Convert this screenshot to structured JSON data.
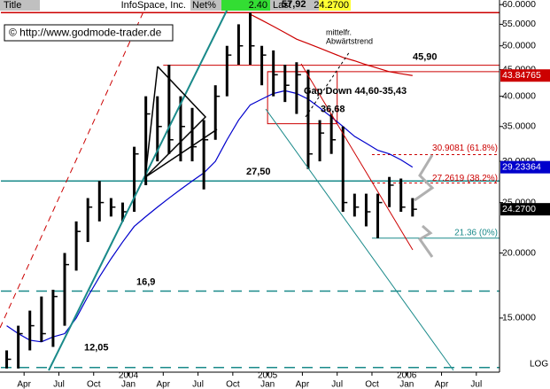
{
  "header": {
    "title": "Title",
    "name": "InfoSpace, Inc.",
    "net_label": "Net%",
    "net": "2.40",
    "last_label": "Last",
    "last": "24.2700"
  },
  "copyright": "© http://www.godmode-trader.de",
  "chart_data": {
    "type": "ohlc",
    "log_scale": true,
    "grid": false,
    "x": [
      "2003-02",
      "2003-03",
      "2003-04",
      "2003-05",
      "2003-06",
      "2003-07",
      "2003-08",
      "2003-09",
      "2003-10",
      "2003-11",
      "2003-12",
      "2004-01",
      "2004-02",
      "2004-03",
      "2004-04",
      "2004-05",
      "2004-06",
      "2004-07",
      "2004-08",
      "2004-09",
      "2004-10",
      "2004-11",
      "2004-12",
      "2005-01",
      "2005-02",
      "2005-03",
      "2005-04",
      "2005-05",
      "2005-06",
      "2005-07",
      "2005-08",
      "2005-09",
      "2005-10",
      "2005-11",
      "2005-12",
      "2006-01"
    ],
    "high": [
      13.0,
      14.5,
      15.5,
      16.5,
      17.0,
      20.0,
      23.0,
      25.5,
      27.5,
      25.5,
      25.0,
      32.0,
      40.0,
      40.0,
      46.0,
      40.0,
      38.0,
      36.0,
      42.0,
      50.0,
      55.0,
      57.92,
      50.0,
      49.0,
      46.0,
      46.5,
      45.0,
      36.0,
      37.0,
      35.0,
      26.0,
      26.0,
      26.0,
      28.0,
      27.8,
      25.5
    ],
    "low": [
      12.0,
      12.0,
      13.0,
      13.5,
      13.2,
      14.5,
      18.5,
      21.0,
      23.0,
      23.5,
      23.0,
      24.0,
      27.0,
      30.0,
      31.0,
      30.0,
      30.0,
      26.5,
      33.0,
      40.0,
      46.0,
      46.0,
      42.0,
      40.0,
      39.0,
      37.0,
      29.0,
      30.0,
      31.0,
      24.0,
      23.5,
      22.5,
      21.36,
      24.5,
      24.0,
      23.5
    ],
    "close": [
      12.5,
      14.0,
      14.5,
      14.0,
      16.5,
      19.0,
      22.0,
      24.5,
      25.0,
      24.5,
      24.0,
      31.0,
      37.0,
      35.0,
      33.0,
      35.0,
      32.0,
      33.0,
      40.0,
      48.0,
      50.0,
      50.0,
      48.0,
      44.0,
      42.0,
      44.0,
      31.0,
      34.0,
      33.0,
      25.0,
      24.5,
      24.0,
      25.0,
      27.0,
      24.5,
      24.27
    ],
    "color": "#000000",
    "moving_averages": [
      {
        "color": "#0000cc",
        "values": [
          14.5,
          14.0,
          13.6,
          13.5,
          13.8,
          14.0,
          15.0,
          16.5,
          18.0,
          19.5,
          21.0,
          22.5,
          23.5,
          24.5,
          25.5,
          26.5,
          27.5,
          28.5,
          30.0,
          33.0,
          36.0,
          38.5,
          39.5,
          40.5,
          41.0,
          40.5,
          39.5,
          38.0,
          36.5,
          35.0,
          33.5,
          32.5,
          31.5,
          31.0,
          30.2,
          29.23364
        ]
      },
      {
        "color": "#cc0000",
        "values": [
          null,
          null,
          null,
          null,
          null,
          null,
          null,
          null,
          null,
          null,
          null,
          null,
          null,
          null,
          null,
          null,
          null,
          null,
          null,
          null,
          null,
          57.5,
          56.0,
          54.5,
          53.0,
          51.5,
          50.5,
          49.5,
          48.5,
          47.5,
          46.8,
          46.0,
          45.3,
          44.6,
          44.2,
          43.84765
        ]
      }
    ],
    "xlim": [
      "2003-02",
      "2006-09"
    ],
    "xticks": [
      {
        "value": "2003-04",
        "label": "Apr"
      },
      {
        "value": "2003-07",
        "label": "Jul"
      },
      {
        "value": "2003-10",
        "label": "Oct"
      },
      {
        "value": "2004-01",
        "label": "Jan"
      },
      {
        "value": "2004-04",
        "label": "Apr"
      },
      {
        "value": "2004-07",
        "label": "Jul"
      },
      {
        "value": "2004-10",
        "label": "Oct"
      },
      {
        "value": "2005-01",
        "label": "Jan"
      },
      {
        "value": "2005-04",
        "label": "Apr"
      },
      {
        "value": "2005-07",
        "label": "Jul"
      },
      {
        "value": "2005-10",
        "label": "Oct"
      },
      {
        "value": "2006-01",
        "label": "Jan"
      },
      {
        "value": "2006-04",
        "label": "Apr"
      },
      {
        "value": "2006-07",
        "label": "Jul"
      }
    ],
    "xyears": [
      {
        "value": "2004-01",
        "label": "2004"
      },
      {
        "value": "2005-01",
        "label": "2005"
      },
      {
        "value": "2006-01",
        "label": "2006"
      }
    ],
    "ylim": [
      11.9,
      61
    ],
    "yticks": [
      {
        "value": 60,
        "label": "60.0000"
      },
      {
        "value": 55,
        "label": "55.0000"
      },
      {
        "value": 50,
        "label": "50.0000"
      },
      {
        "value": 45,
        "label": "45.0000"
      },
      {
        "value": 40,
        "label": "40.0000"
      },
      {
        "value": 35,
        "label": "35.0000"
      },
      {
        "value": 30,
        "label": "30.0000"
      },
      {
        "value": 25,
        "label": "25.0000"
      },
      {
        "value": 20,
        "label": "20.0000"
      },
      {
        "value": 15,
        "label": "15.0000"
      }
    ],
    "scale_label": "LOG",
    "levels": [
      {
        "value": 57.92,
        "label": "57,92",
        "color": "#cc0000",
        "dashed": false,
        "from": null
      },
      {
        "value": 45.9,
        "label": "45,90",
        "color": "#cc0000",
        "dashed": false,
        "from": "2004-04"
      },
      {
        "value": 27.5,
        "label": "27,50",
        "color": "#1a8a8a",
        "dashed": false,
        "from": null
      },
      {
        "value": 16.9,
        "label": "16,9",
        "color": "#1a8a8a",
        "dashed": true,
        "from": null
      },
      {
        "value": 12.05,
        "label": "12,05",
        "color": "#1a8a8a",
        "dashed": true,
        "from": null
      },
      {
        "value": 30.9081,
        "label": "30.9081 (61.8%)",
        "color": "#cc0000",
        "dashed": true,
        "from": "2005-10"
      },
      {
        "value": 27.2619,
        "label": "27.2619 (38.2%)",
        "color": "#cc0000",
        "dashed": true,
        "from": "2005-10"
      },
      {
        "value": 21.36,
        "label": "21.36 (0%)",
        "color": "#1a8a8a",
        "dashed": false,
        "from": "2005-10"
      }
    ],
    "gap": {
      "label": "Gap Down 44,60-35,43",
      "top": 44.6,
      "bottom": 35.43,
      "from": "2005-01",
      "to": "2005-07"
    },
    "annotations": [
      {
        "label": "36,68",
        "value": 36.68
      }
    ],
    "trend_note": [
      "mittelfr.",
      "Abwärtstrend"
    ]
  }
}
